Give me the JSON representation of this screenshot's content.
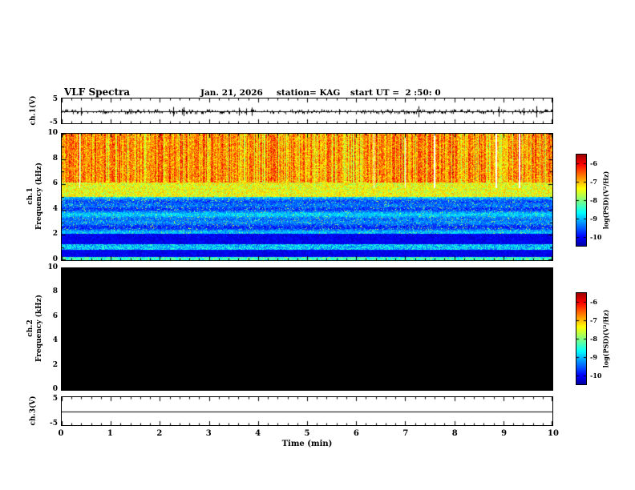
{
  "header": {
    "title": "VLF Spectra",
    "date": "Jan. 21, 2026",
    "station": "station= KAG",
    "start_ut": "start UT =  2 :50: 0"
  },
  "axes": {
    "x": {
      "label": "Time (min)",
      "min": 0,
      "max": 10,
      "ticks": [
        "0",
        "1",
        "2",
        "3",
        "4",
        "5",
        "6",
        "7",
        "8",
        "9",
        "10"
      ]
    },
    "ch1_wave_y": {
      "min": -5,
      "max": 5,
      "ticks": [
        "5",
        "-5"
      ]
    },
    "ch1_spec_y": {
      "min": 0,
      "max": 10,
      "ticks": [
        "10",
        "8",
        "6",
        "4",
        "2",
        "0"
      ]
    },
    "ch2_spec_y": {
      "min": 0,
      "max": 10,
      "ticks": [
        "10",
        "8",
        "6",
        "4",
        "2",
        "0"
      ]
    },
    "ch3_wave_y": {
      "min": -5,
      "max": 5,
      "ticks": [
        "5",
        "-5"
      ]
    }
  },
  "panels": {
    "ch1_wave": {
      "ylabel": "ch.1(V)"
    },
    "ch1_spec": {
      "ylabel_line1": "ch.1",
      "ylabel_line2": "Frequency (kHz)"
    },
    "ch2_spec": {
      "ylabel_line1": "ch.2",
      "ylabel_line2": "Frequency (kHz)"
    },
    "ch3_wave": {
      "ylabel": "ch.3(V)"
    }
  },
  "colorbars": [
    {
      "label": "log(PSD)(V²/Hz)",
      "ticks": [
        "-6",
        "-7",
        "-8",
        "-9",
        "-10"
      ]
    },
    {
      "label": "log(PSD)(V²/Hz)",
      "ticks": [
        "-6",
        "-7",
        "-8",
        "-9",
        "-10"
      ]
    }
  ],
  "colors": {
    "background": "#ffffff",
    "frame": "#000000",
    "no_signal": "#000000",
    "colormap": "jet"
  },
  "chart_data": [
    {
      "type": "line",
      "panel": "ch.1(V)",
      "xlim": [
        0,
        10
      ],
      "ylim": [
        -5,
        5
      ],
      "yticks": [
        5,
        -5
      ],
      "description": "Noisy voltage trace, flat near 0 V across the full 10 minutes with dense tiny spikes"
    },
    {
      "type": "heatmap",
      "panel": "ch.1 Frequency (kHz)",
      "xlim": [
        0,
        10
      ],
      "ylim": [
        0,
        10
      ],
      "yticks": [
        0,
        2,
        4,
        6,
        8,
        10
      ],
      "colormap": "jet",
      "colorbar_label": "log(PSD)(V²/Hz)",
      "colorbar_ticks": [
        -6,
        -7,
        -8,
        -9,
        -10
      ],
      "features": [
        "intense broadband power (log PSD ~ -6, red/orange) from ~6 to 10 kHz with dense vertical striations and occasional narrow white dropout gaps",
        "yellow-green band (~ -7) between ~5 and 6 kHz",
        "blue background (~ -9) from ~2 to 5 kHz with scattered green speckles and horizontal banding",
        "dark blue/black (~ -10) below ~2 kHz with a brighter cyan band near 1 kHz and a green line near 0 kHz",
        "thin yellow horizontal streak near 6.9 kHz between ~7 and 9.3 min"
      ]
    },
    {
      "type": "heatmap",
      "panel": "ch.2 Frequency (kHz)",
      "xlim": [
        0,
        10
      ],
      "ylim": [
        0,
        10
      ],
      "yticks": [
        0,
        2,
        4,
        6,
        8,
        10
      ],
      "colormap": "jet",
      "colorbar_label": "log(PSD)(V²/Hz)",
      "colorbar_ticks": [
        -6,
        -7,
        -8,
        -9,
        -10
      ],
      "features": [
        "no signal - entire panel at/below -10 (solid black)"
      ]
    },
    {
      "type": "line",
      "panel": "ch.3(V)",
      "xlim": [
        0,
        10
      ],
      "ylim": [
        -5,
        5
      ],
      "yticks": [
        5,
        -5
      ],
      "description": "Perfectly flat line at 0 V",
      "xlabel": "Time (min)"
    }
  ]
}
